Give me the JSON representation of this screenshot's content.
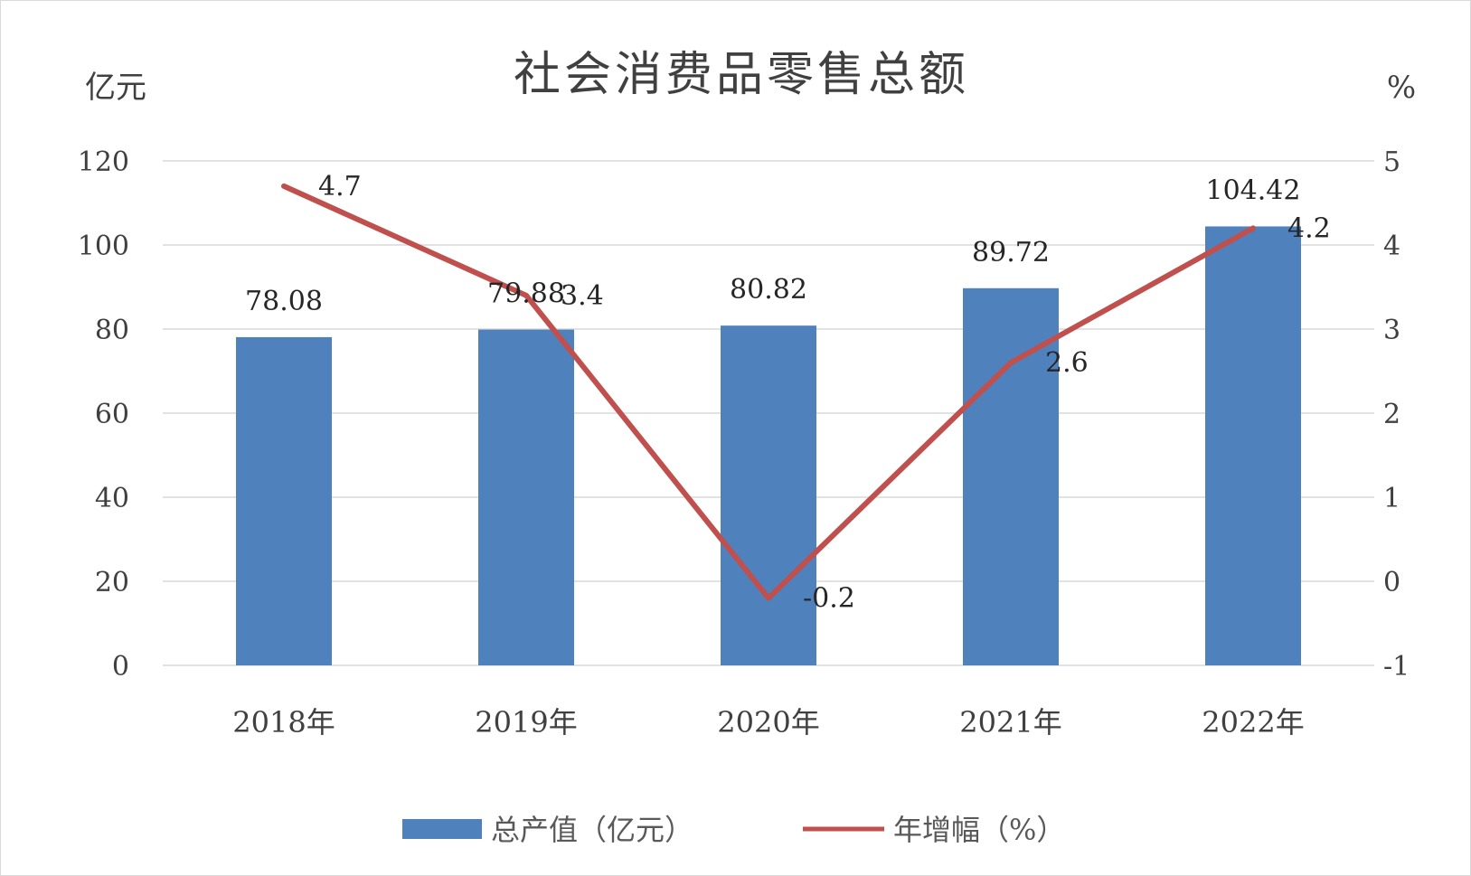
{
  "chart_data": {
    "type": "bar",
    "title": "社会消费品零售总额",
    "left_axis_unit": "亿元",
    "right_axis_unit": "%",
    "categories": [
      "2018年",
      "2019年",
      "2020年",
      "2021年",
      "2022年"
    ],
    "series": [
      {
        "name": "总产值（亿元）",
        "type": "bar",
        "axis": "left",
        "color": "#4F81BD",
        "values": [
          78.08,
          79.88,
          80.82,
          89.72,
          104.42
        ],
        "labels": [
          "78.08",
          "79.88",
          "80.82",
          "89.72",
          "104.42"
        ]
      },
      {
        "name": "年增幅（%）",
        "type": "line",
        "axis": "right",
        "color": "#C0504D",
        "values": [
          4.7,
          3.4,
          -0.2,
          2.6,
          4.2
        ],
        "labels": [
          "4.7",
          "3.4",
          "-0.2",
          "2.6",
          "4.2"
        ]
      }
    ],
    "left_axis": {
      "min": 0,
      "max": 120,
      "step": 20,
      "ticks": [
        "0",
        "20",
        "40",
        "60",
        "80",
        "100",
        "120"
      ]
    },
    "right_axis": {
      "min": -1,
      "max": 5,
      "step": 1,
      "ticks": [
        "-1",
        "0",
        "1",
        "2",
        "3",
        "4",
        "5"
      ]
    },
    "grid": true,
    "legend_position": "bottom"
  }
}
